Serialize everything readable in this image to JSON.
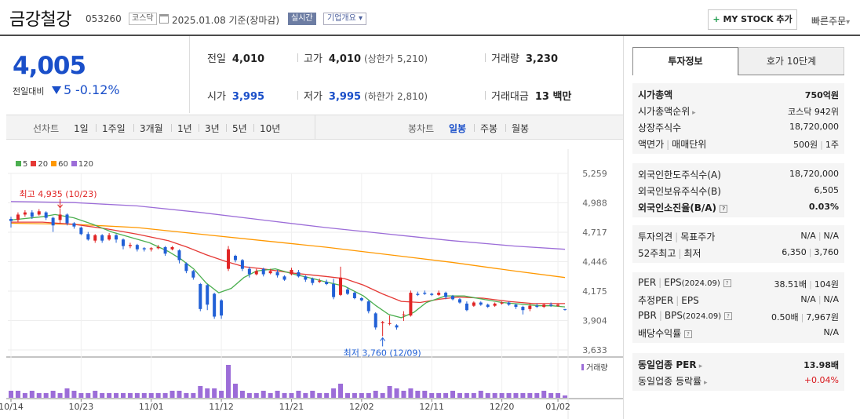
{
  "header": {
    "name": "금강철강",
    "code": "053260",
    "market": "코스닥",
    "date": "2025.01.08 기준(장마감)",
    "live": "실시간",
    "corp_info": "기업개요",
    "mystock": "MY STOCK 추가",
    "quick_order": "빠른주문"
  },
  "price": {
    "current": "4,005",
    "change_label": "전일대비",
    "change": "5",
    "change_pct": "-0.12%"
  },
  "stats": {
    "prev_label": "전일",
    "prev": "4,010",
    "high_label": "고가",
    "high": "4,010",
    "upper_label": "(상한가",
    "upper": "5,210)",
    "volume_label": "거래량",
    "volume": "3,230",
    "open_label": "시가",
    "open": "3,995",
    "low_label": "저가",
    "low": "3,995",
    "lower_label": "(하한가",
    "lower": "2,810)",
    "amount_label": "거래대금",
    "amount": "13 백만"
  },
  "period_bar": {
    "line_label": "선차트",
    "line_items": [
      "1일",
      "1주일",
      "3개월",
      "1년",
      "3년",
      "5년",
      "10년"
    ],
    "candle_label": "봉차트",
    "candle_items": [
      "일봉",
      "주봉",
      "월봉"
    ],
    "candle_selected": 0
  },
  "chart_data": {
    "type": "candlestick",
    "legend": [
      {
        "name": "5",
        "color": "#4caf50"
      },
      {
        "name": "20",
        "color": "#e53935"
      },
      {
        "name": "60",
        "color": "#ff9800"
      },
      {
        "name": "120",
        "color": "#9c6dd8"
      }
    ],
    "y_ticks": [
      5259,
      4988,
      4717,
      4446,
      4175,
      3904,
      3633
    ],
    "ylim": [
      3633,
      5259
    ],
    "x_ticks": [
      "10/14",
      "10/23",
      "11/01",
      "11/12",
      "11/21",
      "12/02",
      "12/11",
      "12/20",
      "01/02"
    ],
    "high_annotation": "최고 4,935 (10/23)",
    "low_annotation": "최저 3,760 (12/09)",
    "volume_label": "거래량",
    "candles": [
      [
        4840,
        4820,
        4860,
        4760
      ],
      [
        4830,
        4880,
        4900,
        4810
      ],
      [
        4880,
        4900,
        4920,
        4860
      ],
      [
        4900,
        4860,
        4920,
        4840
      ],
      [
        4880,
        4910,
        4930,
        4870
      ],
      [
        4900,
        4850,
        4910,
        4830
      ],
      [
        4850,
        4780,
        4860,
        4720
      ],
      [
        4830,
        4880,
        4935,
        4800
      ],
      [
        4880,
        4800,
        4890,
        4780
      ],
      [
        4800,
        4770,
        4810,
        4750
      ],
      [
        4760,
        4700,
        4770,
        4690
      ],
      [
        4700,
        4650,
        4720,
        4640
      ],
      [
        4640,
        4690,
        4700,
        4620
      ],
      [
        4690,
        4640,
        4700,
        4620
      ],
      [
        4650,
        4690,
        4710,
        4640
      ],
      [
        4690,
        4650,
        4700,
        4620
      ],
      [
        4650,
        4590,
        4660,
        4560
      ],
      [
        4590,
        4600,
        4620,
        4570
      ],
      [
        4600,
        4560,
        4610,
        4540
      ],
      [
        4570,
        4560,
        4580,
        4540
      ],
      [
        4560,
        4570,
        4580,
        4540
      ],
      [
        4570,
        4580,
        4600,
        4560
      ],
      [
        4580,
        4520,
        4590,
        4500
      ],
      [
        4560,
        4580,
        4590,
        4550
      ],
      [
        4550,
        4460,
        4560,
        4430
      ],
      [
        4430,
        4360,
        4440,
        4340
      ],
      [
        4360,
        4300,
        4370,
        4280
      ],
      [
        4240,
        4010,
        4250,
        3990
      ],
      [
        4230,
        4050,
        4240,
        4000
      ],
      [
        4150,
        3940,
        4160,
        3920
      ],
      [
        4090,
        3950,
        4100,
        3920
      ],
      [
        4380,
        4560,
        4590,
        4360
      ],
      [
        4500,
        4460,
        4510,
        4440
      ],
      [
        4460,
        4380,
        4470,
        4360
      ],
      [
        4380,
        4330,
        4400,
        4300
      ],
      [
        4330,
        4360,
        4380,
        4320
      ],
      [
        4380,
        4330,
        4390,
        4310
      ],
      [
        4340,
        4360,
        4380,
        4330
      ],
      [
        4350,
        4320,
        4370,
        4300
      ],
      [
        4310,
        4280,
        4320,
        4270
      ],
      [
        4330,
        4370,
        4390,
        4320
      ],
      [
        4350,
        4310,
        4370,
        4300
      ],
      [
        4310,
        4280,
        4320,
        4260
      ],
      [
        4290,
        4250,
        4300,
        4230
      ],
      [
        4260,
        4270,
        4290,
        4250
      ],
      [
        4260,
        4240,
        4280,
        4230
      ],
      [
        4240,
        4120,
        4290,
        4100
      ],
      [
        4140,
        4300,
        4400,
        4130
      ],
      [
        4190,
        4150,
        4210,
        4140
      ],
      [
        4160,
        4110,
        4170,
        4100
      ],
      [
        4110,
        4090,
        4120,
        4080
      ],
      [
        4080,
        3990,
        4090,
        3970
      ],
      [
        3970,
        3840,
        3980,
        3820
      ],
      [
        3880,
        3890,
        3900,
        3760
      ],
      [
        3880,
        3880,
        3950,
        3860
      ],
      [
        3860,
        3840,
        3870,
        3820
      ],
      [
        3960,
        3960,
        3990,
        3900
      ],
      [
        3950,
        4160,
        4180,
        3940
      ],
      [
        4150,
        4140,
        4170,
        4130
      ],
      [
        4160,
        4150,
        4180,
        4140
      ],
      [
        4150,
        4140,
        4160,
        4130
      ],
      [
        4140,
        4160,
        4180,
        4130
      ],
      [
        4160,
        4120,
        4170,
        4100
      ],
      [
        4130,
        4100,
        4140,
        4090
      ],
      [
        4100,
        4070,
        4110,
        4060
      ],
      [
        4060,
        4000,
        4080,
        3990
      ],
      [
        4040,
        4070,
        4080,
        4030
      ],
      [
        4070,
        4050,
        4080,
        4040
      ],
      [
        4050,
        4030,
        4060,
        4020
      ],
      [
        4040,
        4060,
        4070,
        4030
      ],
      [
        4060,
        4070,
        4080,
        4050
      ],
      [
        4070,
        4050,
        4080,
        4040
      ],
      [
        4050,
        4030,
        4060,
        4010
      ],
      [
        4030,
        4000,
        4040,
        3960
      ],
      [
        4010,
        4040,
        4060,
        3990
      ],
      [
        4040,
        4030,
        4060,
        4020
      ],
      [
        4030,
        4050,
        4060,
        4020
      ],
      [
        4050,
        4040,
        4070,
        4030
      ],
      [
        4040,
        4050,
        4060,
        4030
      ],
      [
        4010,
        4005,
        4010,
        3995
      ]
    ],
    "ma5": [
      [
        0,
        4830
      ],
      [
        10,
        4860
      ],
      [
        14,
        4880
      ],
      [
        20,
        4850
      ],
      [
        26,
        4790
      ],
      [
        32,
        4720
      ],
      [
        38,
        4670
      ],
      [
        44,
        4620
      ],
      [
        50,
        4540
      ],
      [
        54,
        4470
      ],
      [
        58,
        4380
      ],
      [
        62,
        4250
      ],
      [
        66,
        4160
      ],
      [
        70,
        4200
      ],
      [
        74,
        4300
      ],
      [
        78,
        4360
      ],
      [
        84,
        4380
      ],
      [
        90,
        4330
      ],
      [
        96,
        4290
      ],
      [
        100,
        4260
      ],
      [
        106,
        4220
      ],
      [
        112,
        4130
      ],
      [
        116,
        4040
      ],
      [
        120,
        3960
      ],
      [
        124,
        3930
      ],
      [
        128,
        3980
      ],
      [
        132,
        4070
      ],
      [
        138,
        4130
      ],
      [
        144,
        4130
      ],
      [
        150,
        4100
      ],
      [
        156,
        4070
      ],
      [
        160,
        4060
      ],
      [
        164,
        4050
      ],
      [
        168,
        4040
      ],
      [
        172,
        4040
      ],
      [
        176,
        4030
      ]
    ],
    "ma20": [
      [
        0,
        4810
      ],
      [
        10,
        4810
      ],
      [
        20,
        4790
      ],
      [
        30,
        4750
      ],
      [
        40,
        4700
      ],
      [
        50,
        4640
      ],
      [
        56,
        4580
      ],
      [
        62,
        4510
      ],
      [
        68,
        4450
      ],
      [
        74,
        4400
      ],
      [
        80,
        4380
      ],
      [
        90,
        4340
      ],
      [
        100,
        4310
      ],
      [
        106,
        4290
      ],
      [
        112,
        4230
      ],
      [
        118,
        4150
      ],
      [
        124,
        4080
      ],
      [
        130,
        4070
      ],
      [
        136,
        4100
      ],
      [
        142,
        4120
      ],
      [
        150,
        4110
      ],
      [
        158,
        4080
      ],
      [
        166,
        4060
      ],
      [
        176,
        4060
      ]
    ],
    "ma60": [
      [
        0,
        4800
      ],
      [
        20,
        4790
      ],
      [
        40,
        4760
      ],
      [
        60,
        4700
      ],
      [
        80,
        4640
      ],
      [
        100,
        4580
      ],
      [
        120,
        4510
      ],
      [
        140,
        4440
      ],
      [
        160,
        4360
      ],
      [
        176,
        4300
      ]
    ],
    "ma120": [
      [
        0,
        5000
      ],
      [
        20,
        4990
      ],
      [
        40,
        4960
      ],
      [
        60,
        4900
      ],
      [
        80,
        4830
      ],
      [
        100,
        4760
      ],
      [
        120,
        4700
      ],
      [
        140,
        4640
      ],
      [
        160,
        4590
      ],
      [
        176,
        4560
      ]
    ],
    "volumes": [
      3,
      3,
      2,
      3,
      2,
      2,
      3,
      2,
      4,
      3,
      2,
      2,
      3,
      2,
      2,
      2,
      2,
      2,
      2,
      2,
      2,
      2,
      2,
      3,
      3,
      2,
      2,
      5,
      4,
      4,
      3,
      14,
      6,
      3,
      2,
      2,
      3,
      2,
      3,
      2,
      2,
      3,
      2,
      3,
      2,
      2,
      4,
      6,
      2,
      2,
      2,
      2,
      3,
      2,
      5,
      4,
      3,
      4,
      3,
      3,
      2,
      2,
      2,
      3,
      2,
      2,
      2,
      3,
      2,
      2,
      2,
      2,
      2,
      2,
      2,
      2,
      3,
      2,
      2,
      1
    ]
  },
  "right_panel": {
    "tab_active": "투자정보",
    "tab_other": "호가 10단계",
    "group1": [
      {
        "k": "시가총액",
        "v": "750억원",
        "bold": true
      },
      {
        "k": "시가총액순위",
        "v": "코스닥 942위",
        "arrow": true
      },
      {
        "k": "상장주식수",
        "v": "18,720,000"
      },
      {
        "k1": "액면가",
        "k2": "매매단위",
        "v1": "500원",
        "v2": "1주"
      }
    ],
    "group2": [
      {
        "k": "외국인한도주식수(A)",
        "v": "18,720,000"
      },
      {
        "k": "외국인보유주식수(B)",
        "v": "6,505"
      },
      {
        "k": "외국인소진율(B/A)",
        "v": "0.03%",
        "bold": true,
        "info": true
      }
    ],
    "group3": [
      {
        "k1": "투자의견",
        "k2": "목표주가",
        "v1": "N/A",
        "v2": "N/A"
      },
      {
        "k1": "52주최고",
        "k2": "최저",
        "v1": "6,350",
        "v2": "3,760"
      }
    ],
    "group4": [
      {
        "k1": "PER",
        "k2": "EPS",
        "sub": "(2024.09)",
        "v1": "38.51배",
        "v2": "104원"
      },
      {
        "k1": "추정PER",
        "k2": "EPS",
        "v1": "N/A",
        "v2": "N/A"
      },
      {
        "k1": "PBR",
        "k2": "BPS",
        "sub": "(2024.09)",
        "v1": "0.50배",
        "v2": "7,967원"
      },
      {
        "k": "배당수익률",
        "v": "N/A",
        "info": true
      }
    ],
    "group5": [
      {
        "k": "동일업종 PER",
        "v": "13.98배",
        "bold": true
      },
      {
        "k": "동일업종 등락률",
        "v": "+0.04%",
        "red": true
      }
    ],
    "info_icon": "?"
  }
}
